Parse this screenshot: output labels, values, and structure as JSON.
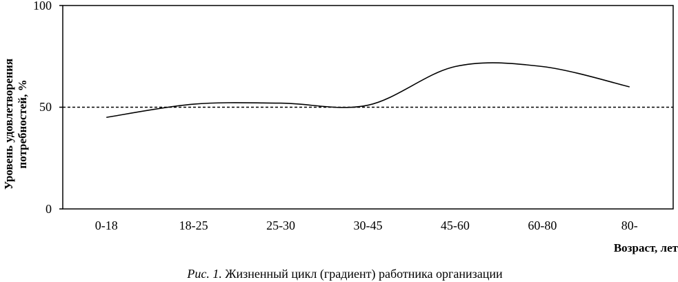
{
  "chart_data": {
    "type": "line",
    "categories": [
      "0-18",
      "18-25",
      "25-30",
      "30-45",
      "45-60",
      "60-80",
      "80-"
    ],
    "series": [
      {
        "values": [
          45,
          51.5,
          52,
          51,
          70,
          70,
          60
        ]
      }
    ],
    "reference_line": {
      "y": 50,
      "style": "dashed"
    },
    "ylim": [
      0,
      100
    ],
    "yticks": [
      0,
      50,
      100
    ],
    "xlabel": "Возраст, лет",
    "ylabel_line1": "Уровень удовлетворения",
    "ylabel_line2": "потребностей, %",
    "grid": false,
    "line_color": "#000000"
  },
  "caption": {
    "prefix": "Рис. 1.",
    "text": " Жизненный цикл (градиент) работника организации"
  }
}
